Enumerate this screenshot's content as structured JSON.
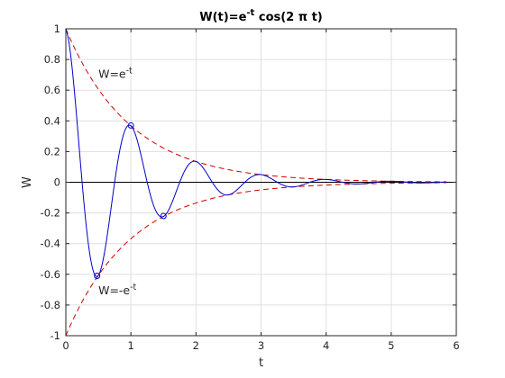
{
  "chart_data": {
    "type": "line",
    "title": "W(t)=e^{-t} cos(2 π t)",
    "title_parts": {
      "lead": "W(t)=e",
      "sup": "-t",
      "tail": " cos(2 π t)"
    },
    "xlabel": "t",
    "ylabel": "W",
    "xlim": [
      0,
      6
    ],
    "ylim": [
      -1,
      1
    ],
    "xticks": [
      0,
      1,
      2,
      3,
      4,
      5,
      6
    ],
    "xtick_labels": [
      "0",
      "1",
      "2",
      "3",
      "4",
      "5",
      "6"
    ],
    "yticks": [
      -1,
      -0.8,
      -0.6,
      -0.4,
      -0.2,
      0,
      0.2,
      0.4,
      0.6,
      0.8,
      1
    ],
    "ytick_labels": [
      "-1",
      "-0.8",
      "-0.6",
      "-0.4",
      "-0.2",
      "0",
      "0.2",
      "0.4",
      "0.6",
      "0.8",
      "1"
    ],
    "grid": true,
    "series": [
      {
        "function": "exp(-t)*cos(2*pi*t)",
        "t_range": [
          0,
          5.85
        ],
        "color": "#0000cc",
        "style": "solid",
        "markers": [
          {
            "x": 0.48,
            "y": -0.61
          },
          {
            "x": 1.0,
            "y": 0.37
          },
          {
            "x": 1.5,
            "y": -0.22
          }
        ]
      },
      {
        "function": "exp(-t)",
        "t_range": [
          0,
          5.85
        ],
        "color": "#cc0000",
        "style": "dashed"
      },
      {
        "function": "-exp(-t)",
        "t_range": [
          0,
          5.85
        ],
        "color": "#cc0000",
        "style": "dashed"
      },
      {
        "function": "0",
        "t_range": [
          0,
          6
        ],
        "color": "#000000",
        "style": "solid"
      }
    ],
    "annotations": [
      {
        "lead": "W=e",
        "sup": "-t",
        "x": 0.5,
        "y": 0.68
      },
      {
        "lead": "W=-e",
        "sup": "-t",
        "x": 0.5,
        "y": -0.73
      }
    ]
  }
}
